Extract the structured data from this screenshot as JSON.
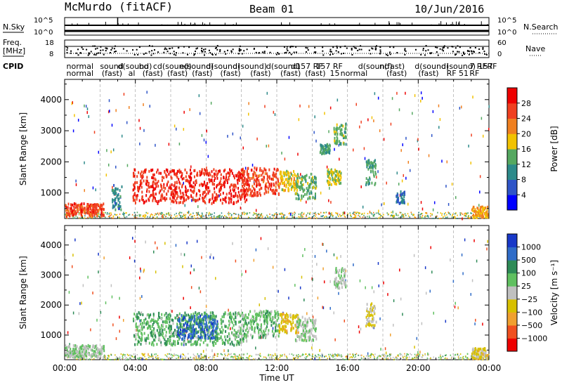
{
  "header": {
    "title": "McMurdo (fitACF)",
    "beam": "Beam 01",
    "date": "10/Jun/2016"
  },
  "strips": {
    "nsky_label": "N.Sky",
    "nsearch_label": "N.Search",
    "freq_label_1": "Freq.",
    "freq_label_2": "[MHz]",
    "nave_label": "Nave",
    "cpid_label": "CPID",
    "noise_left_ticks": [
      "10^5",
      "10^0"
    ],
    "noise_right_ticks": [
      "10^5",
      "10^0"
    ],
    "freq_left_ticks": [
      "18",
      "8"
    ],
    "freq_right_ticks": [
      "60",
      "0"
    ],
    "cpid_labels": [
      {
        "hour": 0.1,
        "row": 0,
        "text": "normal"
      },
      {
        "hour": 0.1,
        "row": 1,
        "text": "normal"
      },
      {
        "hour": 2.0,
        "row": 0,
        "text": "sound"
      },
      {
        "hour": 2.1,
        "row": 1,
        "text": "(fast)"
      },
      {
        "hour": 3.0,
        "row": 0,
        "text": "d(sound)"
      },
      {
        "hour": 3.6,
        "row": 1,
        "text": "al"
      },
      {
        "hour": 4.2,
        "row": 0,
        "text": "bo"
      },
      {
        "hour": 4.4,
        "row": 1,
        "text": "(fast)"
      },
      {
        "hour": 5.0,
        "row": 0,
        "text": "cd(sound)"
      },
      {
        "hour": 5.8,
        "row": 1,
        "text": "(fast)"
      },
      {
        "hour": 6.5,
        "row": 0,
        "text": "e(sound)"
      },
      {
        "hour": 7.2,
        "row": 1,
        "text": "(fast)"
      },
      {
        "hour": 8.0,
        "row": 0,
        "text": "d(sound)"
      },
      {
        "hour": 8.8,
        "row": 1,
        "text": "(fast)"
      },
      {
        "hour": 9.5,
        "row": 0,
        "text": "d(sound)"
      },
      {
        "hour": 10.5,
        "row": 1,
        "text": "(fast)"
      },
      {
        "hour": 11.4,
        "row": 0,
        "text": "d(sound)"
      },
      {
        "hour": 12.2,
        "row": 1,
        "text": "(fast)"
      },
      {
        "hour": 12.8,
        "row": 0,
        "text": "d157 RF"
      },
      {
        "hour": 13.6,
        "row": 1,
        "text": "(fast)"
      },
      {
        "hour": 14.2,
        "row": 0,
        "text": "157 RF"
      },
      {
        "hour": 15.0,
        "row": 1,
        "text": "15"
      },
      {
        "hour": 15.6,
        "row": 1,
        "text": "normal"
      },
      {
        "hour": 16.6,
        "row": 0,
        "text": "d(sound)"
      },
      {
        "hour": 17.8,
        "row": 0,
        "text": "n(fast)"
      },
      {
        "hour": 18.2,
        "row": 1,
        "text": "(fast)"
      },
      {
        "hour": 19.8,
        "row": 0,
        "text": "d(sound)"
      },
      {
        "hour": 20.0,
        "row": 1,
        "text": "(fast)"
      },
      {
        "hour": 21.3,
        "row": 0,
        "text": "d(sound)"
      },
      {
        "hour": 21.6,
        "row": 1,
        "text": "RF 51"
      },
      {
        "hour": 22.9,
        "row": 0,
        "text": "7 RF"
      },
      {
        "hour": 23.4,
        "row": 0,
        "text": "157"
      },
      {
        "hour": 23.9,
        "row": 0,
        "text": "RF"
      },
      {
        "hour": 22.9,
        "row": 1,
        "text": "RF"
      }
    ]
  },
  "chart_data": [
    {
      "type": "heatmap",
      "title": "",
      "xlabel": "",
      "ylabel": "Slant Range [km]",
      "xlim": [
        0,
        24
      ],
      "ylim": [
        180,
        4650
      ],
      "yticks": [
        1000,
        2000,
        3000,
        4000
      ],
      "colorbar": {
        "label": "Power [dB]",
        "ticks": [
          28,
          24,
          20,
          16,
          12,
          8,
          4
        ],
        "colors": [
          "#0000ff",
          "#2f55c8",
          "#2d8a8a",
          "#55a860",
          "#f2c200",
          "#f08020",
          "#f04020",
          "#ee0000"
        ],
        "range": [
          0,
          32
        ]
      },
      "features": [
        {
          "start_hour": 0.0,
          "end_hour": 2.2,
          "range_km": [
            300,
            700
          ],
          "value": 26
        },
        {
          "start_hour": 2.6,
          "end_hour": 3.2,
          "range_km": [
            500,
            1300
          ],
          "value": 10
        },
        {
          "start_hour": 3.8,
          "end_hour": 10.3,
          "range_km": [
            700,
            1800
          ],
          "value": 28
        },
        {
          "start_hour": 10.0,
          "end_hour": 12.1,
          "range_km": [
            950,
            1850
          ],
          "value": 26
        },
        {
          "start_hour": 12.1,
          "end_hour": 13.2,
          "range_km": [
            1100,
            1750
          ],
          "value": 18
        },
        {
          "start_hour": 13.0,
          "end_hour": 14.2,
          "range_km": [
            850,
            1650
          ],
          "value": 14
        },
        {
          "start_hour": 14.4,
          "end_hour": 15.0,
          "range_km": [
            2300,
            2600
          ],
          "value": 12
        },
        {
          "start_hour": 15.2,
          "end_hour": 15.9,
          "range_km": [
            2600,
            3300
          ],
          "value": 14
        },
        {
          "start_hour": 14.8,
          "end_hour": 15.6,
          "range_km": [
            1300,
            1800
          ],
          "value": 16
        },
        {
          "start_hour": 17.0,
          "end_hour": 17.6,
          "range_km": [
            1300,
            2100
          ],
          "value": 12
        },
        {
          "start_hour": 18.7,
          "end_hour": 19.2,
          "range_km": [
            700,
            1100
          ],
          "value": 8
        },
        {
          "start_hour": 23.0,
          "end_hour": 23.9,
          "range_km": [
            250,
            600
          ],
          "value": 20
        }
      ]
    },
    {
      "type": "heatmap",
      "title": "",
      "xlabel": "Time UT",
      "ylabel": "Slant Range [km]",
      "xlim": [
        0,
        24
      ],
      "ylim": [
        180,
        4650
      ],
      "xticks": [
        "00:00",
        "04:00",
        "08:00",
        "12:00",
        "16:00",
        "20:00",
        "00:00"
      ],
      "yticks": [
        1000,
        2000,
        3000,
        4000
      ],
      "colorbar": {
        "label": "Velocity [m s⁻¹]",
        "ticks": [
          "1000",
          "500",
          "100",
          "25",
          "−25",
          "−100",
          "−500",
          "−1000"
        ],
        "colors": [
          "#ee0000",
          "#f05020",
          "#f0a030",
          "#d8c000",
          "#c0c0c0",
          "#60c060",
          "#2e8b57",
          "#2f6cc8",
          "#1838c8"
        ],
        "range": [
          -1200,
          1200
        ]
      },
      "features": [
        {
          "start_hour": 0.0,
          "end_hour": 2.2,
          "range_km": [
            300,
            700
          ],
          "value": 100
        },
        {
          "start_hour": 3.8,
          "end_hour": 10.3,
          "range_km": [
            700,
            1800
          ],
          "value": 300
        },
        {
          "start_hour": 6.3,
          "end_hour": 8.6,
          "range_km": [
            900,
            1700
          ],
          "value": 800
        },
        {
          "start_hour": 10.0,
          "end_hour": 12.1,
          "range_km": [
            950,
            1850
          ],
          "value": 250
        },
        {
          "start_hour": 12.1,
          "end_hour": 13.2,
          "range_km": [
            1100,
            1750
          ],
          "value": -300
        },
        {
          "start_hour": 13.0,
          "end_hour": 14.2,
          "range_km": [
            850,
            1650
          ],
          "value": 100
        },
        {
          "start_hour": 15.2,
          "end_hour": 15.9,
          "range_km": [
            2600,
            3300
          ],
          "value": 100
        },
        {
          "start_hour": 17.0,
          "end_hour": 17.6,
          "range_km": [
            1300,
            2100
          ],
          "value": -150
        },
        {
          "start_hour": 23.0,
          "end_hour": 23.9,
          "range_km": [
            250,
            600
          ],
          "value": -200
        }
      ]
    }
  ]
}
